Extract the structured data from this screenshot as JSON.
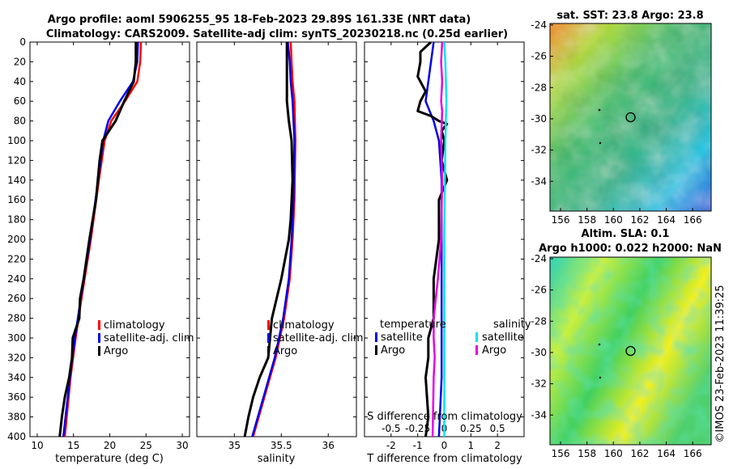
{
  "header": {
    "title_line1": "Argo profile: aoml 5906255_95 18-Feb-2023 29.89S 161.33E (NRT data)",
    "title_line2": "Climatology: CARS2009. Satellite-adj clim: synTS_20230218.nc (0.25d earlier)"
  },
  "footer": {
    "credit": "©IMOS 23-Feb-2023 11:39:25"
  },
  "colors": {
    "climatology": "#ff0000",
    "satellite": "#0000e6",
    "argo": "#000000",
    "sat_salinity": "#00e5ee",
    "argo_salinity": "#e600e6"
  },
  "chart_data": [
    {
      "type": "line",
      "name": "temperature-profile",
      "xlabel": "temperature (deg C)",
      "ylabel": "",
      "xlim": [
        9,
        31
      ],
      "ylim": [
        400,
        0
      ],
      "xticks": [
        "10",
        "15",
        "20",
        "25",
        "30"
      ],
      "yticks": [
        "0",
        "20",
        "40",
        "60",
        "80",
        "100",
        "120",
        "140",
        "160",
        "180",
        "200",
        "220",
        "240",
        "260",
        "280",
        "300",
        "320",
        "340",
        "360",
        "380",
        "400"
      ],
      "legend": [
        "climatology",
        "satellite-adj. clim",
        "Argo"
      ],
      "series": [
        {
          "name": "climatology",
          "color": "#ff0000",
          "depth": [
            0,
            20,
            40,
            60,
            80,
            100,
            140,
            200,
            260,
            300,
            340,
            400
          ],
          "values": [
            24.3,
            24.2,
            23.8,
            22.1,
            20.2,
            19.3,
            18.5,
            17.4,
            16.1,
            15.3,
            14.6,
            13.8
          ]
        },
        {
          "name": "satellite-adj. clim",
          "color": "#0000e6",
          "depth": [
            0,
            20,
            40,
            60,
            80,
            100,
            140,
            200,
            260,
            300,
            340,
            400
          ],
          "values": [
            23.9,
            23.8,
            23.2,
            21.4,
            19.8,
            19.1,
            18.4,
            17.3,
            16.0,
            15.2,
            14.5,
            13.6
          ]
        },
        {
          "name": "Argo",
          "color": "#000000",
          "depth": [
            0,
            20,
            40,
            60,
            80,
            100,
            120,
            160,
            200,
            240,
            260,
            280,
            300,
            320,
            340,
            360,
            380,
            400
          ],
          "values": [
            23.6,
            23.6,
            23.3,
            22.0,
            20.8,
            19.0,
            18.6,
            18.1,
            17.2,
            16.4,
            15.9,
            15.8,
            14.9,
            14.8,
            14.4,
            13.8,
            13.4,
            13.1
          ]
        }
      ]
    },
    {
      "type": "line",
      "name": "salinity-profile",
      "xlabel": "salinity",
      "ylabel": "",
      "xlim": [
        34.6,
        36.3
      ],
      "ylim": [
        400,
        0
      ],
      "xticks": [
        "35",
        "35.5",
        "36"
      ],
      "legend": [
        "climatology",
        "satellite-adj. clim",
        "Argo"
      ],
      "series": [
        {
          "name": "climatology",
          "color": "#ff0000",
          "depth": [
            0,
            20,
            40,
            60,
            100,
            160,
            200,
            240,
            280,
            320,
            360,
            400
          ],
          "values": [
            35.6,
            35.61,
            35.62,
            35.64,
            35.65,
            35.64,
            35.62,
            35.59,
            35.53,
            35.44,
            35.32,
            35.2
          ]
        },
        {
          "name": "satellite-adj. clim",
          "color": "#0000e6",
          "depth": [
            0,
            20,
            40,
            60,
            100,
            160,
            200,
            240,
            280,
            320,
            360,
            400
          ],
          "values": [
            35.57,
            35.59,
            35.6,
            35.62,
            35.64,
            35.63,
            35.61,
            35.58,
            35.52,
            35.43,
            35.31,
            35.19
          ]
        },
        {
          "name": "Argo",
          "color": "#000000",
          "depth": [
            0,
            20,
            40,
            60,
            80,
            100,
            140,
            180,
            200,
            240,
            260,
            280,
            300,
            320,
            340,
            360,
            380,
            400
          ],
          "values": [
            35.56,
            35.56,
            35.56,
            35.56,
            35.58,
            35.61,
            35.62,
            35.6,
            35.58,
            35.5,
            35.45,
            35.4,
            35.38,
            35.36,
            35.27,
            35.2,
            35.15,
            35.11
          ]
        }
      ]
    },
    {
      "type": "line",
      "name": "difference-profile",
      "xlabel": "T difference from climatology",
      "x2label": "S difference from climatology",
      "xlim": [
        -3,
        3
      ],
      "x2lim": [
        -0.75,
        0.75
      ],
      "ylim": [
        400,
        0
      ],
      "xticks": [
        "-2",
        "-1",
        "0",
        "1",
        "2"
      ],
      "x2ticks": [
        "-0.5",
        "-0.25",
        "0",
        "0.25",
        "0.5"
      ],
      "legend_left_title": "temperature",
      "legend_right_title": "salinity",
      "legend_left": [
        "satellite",
        "Argo"
      ],
      "legend_right": [
        "satellite",
        "Argo"
      ],
      "series": [
        {
          "name": "T satellite",
          "axis": "T",
          "color": "#0000e6",
          "depth": [
            0,
            20,
            40,
            60,
            80,
            100,
            140,
            200,
            260,
            300,
            340,
            400
          ],
          "values": [
            -0.4,
            -0.5,
            -0.6,
            -0.7,
            -0.4,
            -0.2,
            -0.1,
            -0.1,
            -0.1,
            -0.1,
            -0.1,
            -0.2
          ]
        },
        {
          "name": "T Argo",
          "axis": "T",
          "color": "#000000",
          "depth": [
            0,
            10,
            20,
            35,
            50,
            60,
            70,
            75,
            80,
            83,
            90,
            100,
            120,
            140,
            160,
            200,
            240,
            280,
            300,
            320,
            340,
            380,
            400
          ],
          "values": [
            -0.5,
            -0.9,
            -0.9,
            -1.0,
            -0.7,
            -0.9,
            -1.0,
            -0.5,
            -0.2,
            0.1,
            -0.1,
            0.0,
            -0.1,
            0.1,
            -0.2,
            -0.2,
            -0.4,
            -0.4,
            -0.6,
            -0.6,
            -0.7,
            -0.6,
            -0.7
          ]
        },
        {
          "name": "S satellite",
          "axis": "S",
          "color": "#00e5ee",
          "depth": [
            0,
            20,
            60,
            100,
            200,
            300,
            400
          ],
          "values": [
            0.0,
            0.01,
            0.02,
            0.01,
            0.0,
            0.0,
            0.0
          ]
        },
        {
          "name": "S Argo",
          "axis": "S",
          "color": "#e600e6",
          "depth": [
            0,
            20,
            40,
            60,
            70,
            100,
            140,
            200,
            240,
            260,
            280,
            300,
            320,
            340,
            400
          ],
          "values": [
            -0.02,
            -0.03,
            -0.02,
            -0.03,
            -0.02,
            -0.03,
            -0.02,
            -0.03,
            -0.06,
            -0.08,
            -0.1,
            -0.1,
            -0.09,
            -0.1,
            -0.11
          ]
        }
      ]
    },
    {
      "type": "heatmap",
      "name": "sst-map",
      "title": "sat. SST: 23.8 Argo: 23.8",
      "xticks": [
        "156",
        "158",
        "160",
        "162",
        "164",
        "166"
      ],
      "yticks": [
        "-24",
        "-26",
        "-28",
        "-30",
        "-32",
        "-34"
      ],
      "xlim": [
        155.2,
        167.4
      ],
      "ylim": [
        -35.9,
        -23.9
      ],
      "profile_position": [
        161.33,
        -29.89
      ]
    },
    {
      "type": "heatmap",
      "name": "sla-map",
      "title": "Altim. SLA: 0.1",
      "title2": "Argo h1000: 0.022 h2000: NaN",
      "xticks": [
        "156",
        "158",
        "160",
        "162",
        "164",
        "166"
      ],
      "yticks": [
        "-24",
        "-26",
        "-28",
        "-30",
        "-32",
        "-34"
      ],
      "xlim": [
        155.2,
        167.4
      ],
      "ylim": [
        -35.9,
        -23.9
      ],
      "profile_position": [
        161.33,
        -29.89
      ]
    }
  ]
}
